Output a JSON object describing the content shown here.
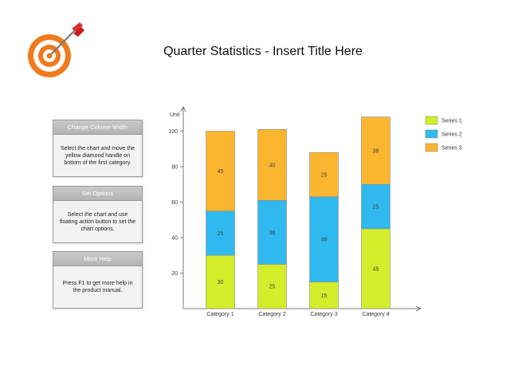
{
  "page": {
    "title": "Quarter Statistics - Insert Title Here"
  },
  "help_boxes": [
    {
      "heading": "Change Column Width",
      "text": "Select the chart and move the yellow diamond handle on bottom of the first category."
    },
    {
      "heading": "Set Options",
      "text": "Select the chart and use floating action button to set the chart options."
    },
    {
      "heading": "More Help",
      "text": "Press F1 to get more help in the product manual."
    }
  ],
  "chart_data": {
    "type": "bar",
    "stacked": true,
    "ylabel": "Unit",
    "ylim": [
      0,
      100
    ],
    "yticks": [
      20,
      40,
      60,
      80,
      100
    ],
    "categories": [
      "Category 1",
      "Category 2",
      "Category 3",
      "Category 4"
    ],
    "series": [
      {
        "name": "Series 1",
        "color": "#d4ed2b",
        "values": [
          30,
          25,
          15,
          45
        ]
      },
      {
        "name": "Series 2",
        "color": "#30b9ef",
        "values": [
          25,
          36,
          48,
          25
        ]
      },
      {
        "name": "Series 3",
        "color": "#fbb52f",
        "values": [
          45,
          40,
          25,
          38
        ]
      }
    ],
    "legend": "top-right",
    "grid": false
  }
}
